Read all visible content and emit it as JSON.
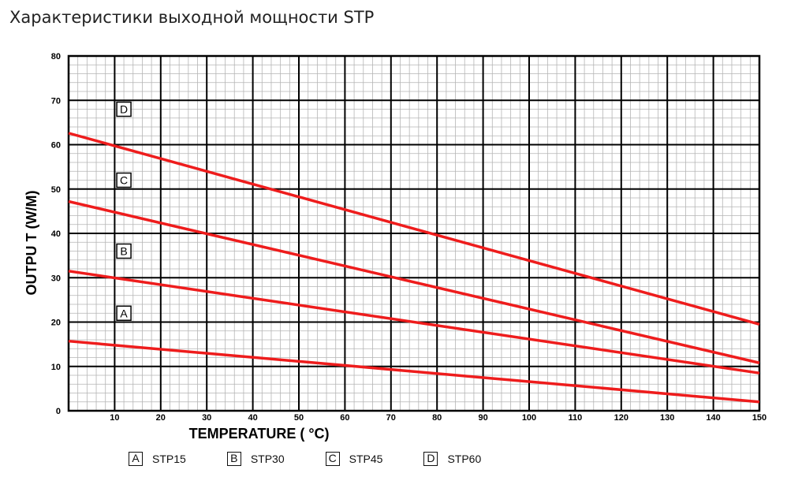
{
  "page": {
    "title": "Характеристики выходной мощности STP"
  },
  "colors": {
    "series_line": "#ee1c1c",
    "major_grid": "#000000",
    "minor_grid": "#b5b5b5"
  },
  "chart_data": {
    "type": "line",
    "title": "",
    "xlabel": "TEMPERATURE ( °C)",
    "ylabel": "OUTPU T (W/M)",
    "xlim": [
      0,
      150
    ],
    "ylim": [
      0,
      80
    ],
    "xticks": [
      10,
      20,
      30,
      40,
      50,
      60,
      70,
      80,
      90,
      100,
      110,
      120,
      130,
      140,
      150
    ],
    "yticks": [
      0,
      10,
      20,
      30,
      40,
      50,
      60,
      70,
      80
    ],
    "grid": true,
    "legend_position": "bottom",
    "series": [
      {
        "name": "STP15",
        "label": "A",
        "x": [
          0,
          150
        ],
        "y": [
          15.7,
          2.0
        ],
        "label_pos": [
          12,
          22
        ]
      },
      {
        "name": "STP30",
        "label": "B",
        "x": [
          0,
          150
        ],
        "y": [
          31.5,
          8.5
        ],
        "label_pos": [
          12,
          36
        ]
      },
      {
        "name": "STP45",
        "label": "C",
        "x": [
          0,
          150
        ],
        "y": [
          47.2,
          10.8
        ],
        "label_pos": [
          12,
          52
        ]
      },
      {
        "name": "STP60",
        "label": "D",
        "x": [
          0,
          150
        ],
        "y": [
          62.6,
          19.5
        ],
        "label_pos": [
          12,
          68
        ]
      }
    ]
  }
}
